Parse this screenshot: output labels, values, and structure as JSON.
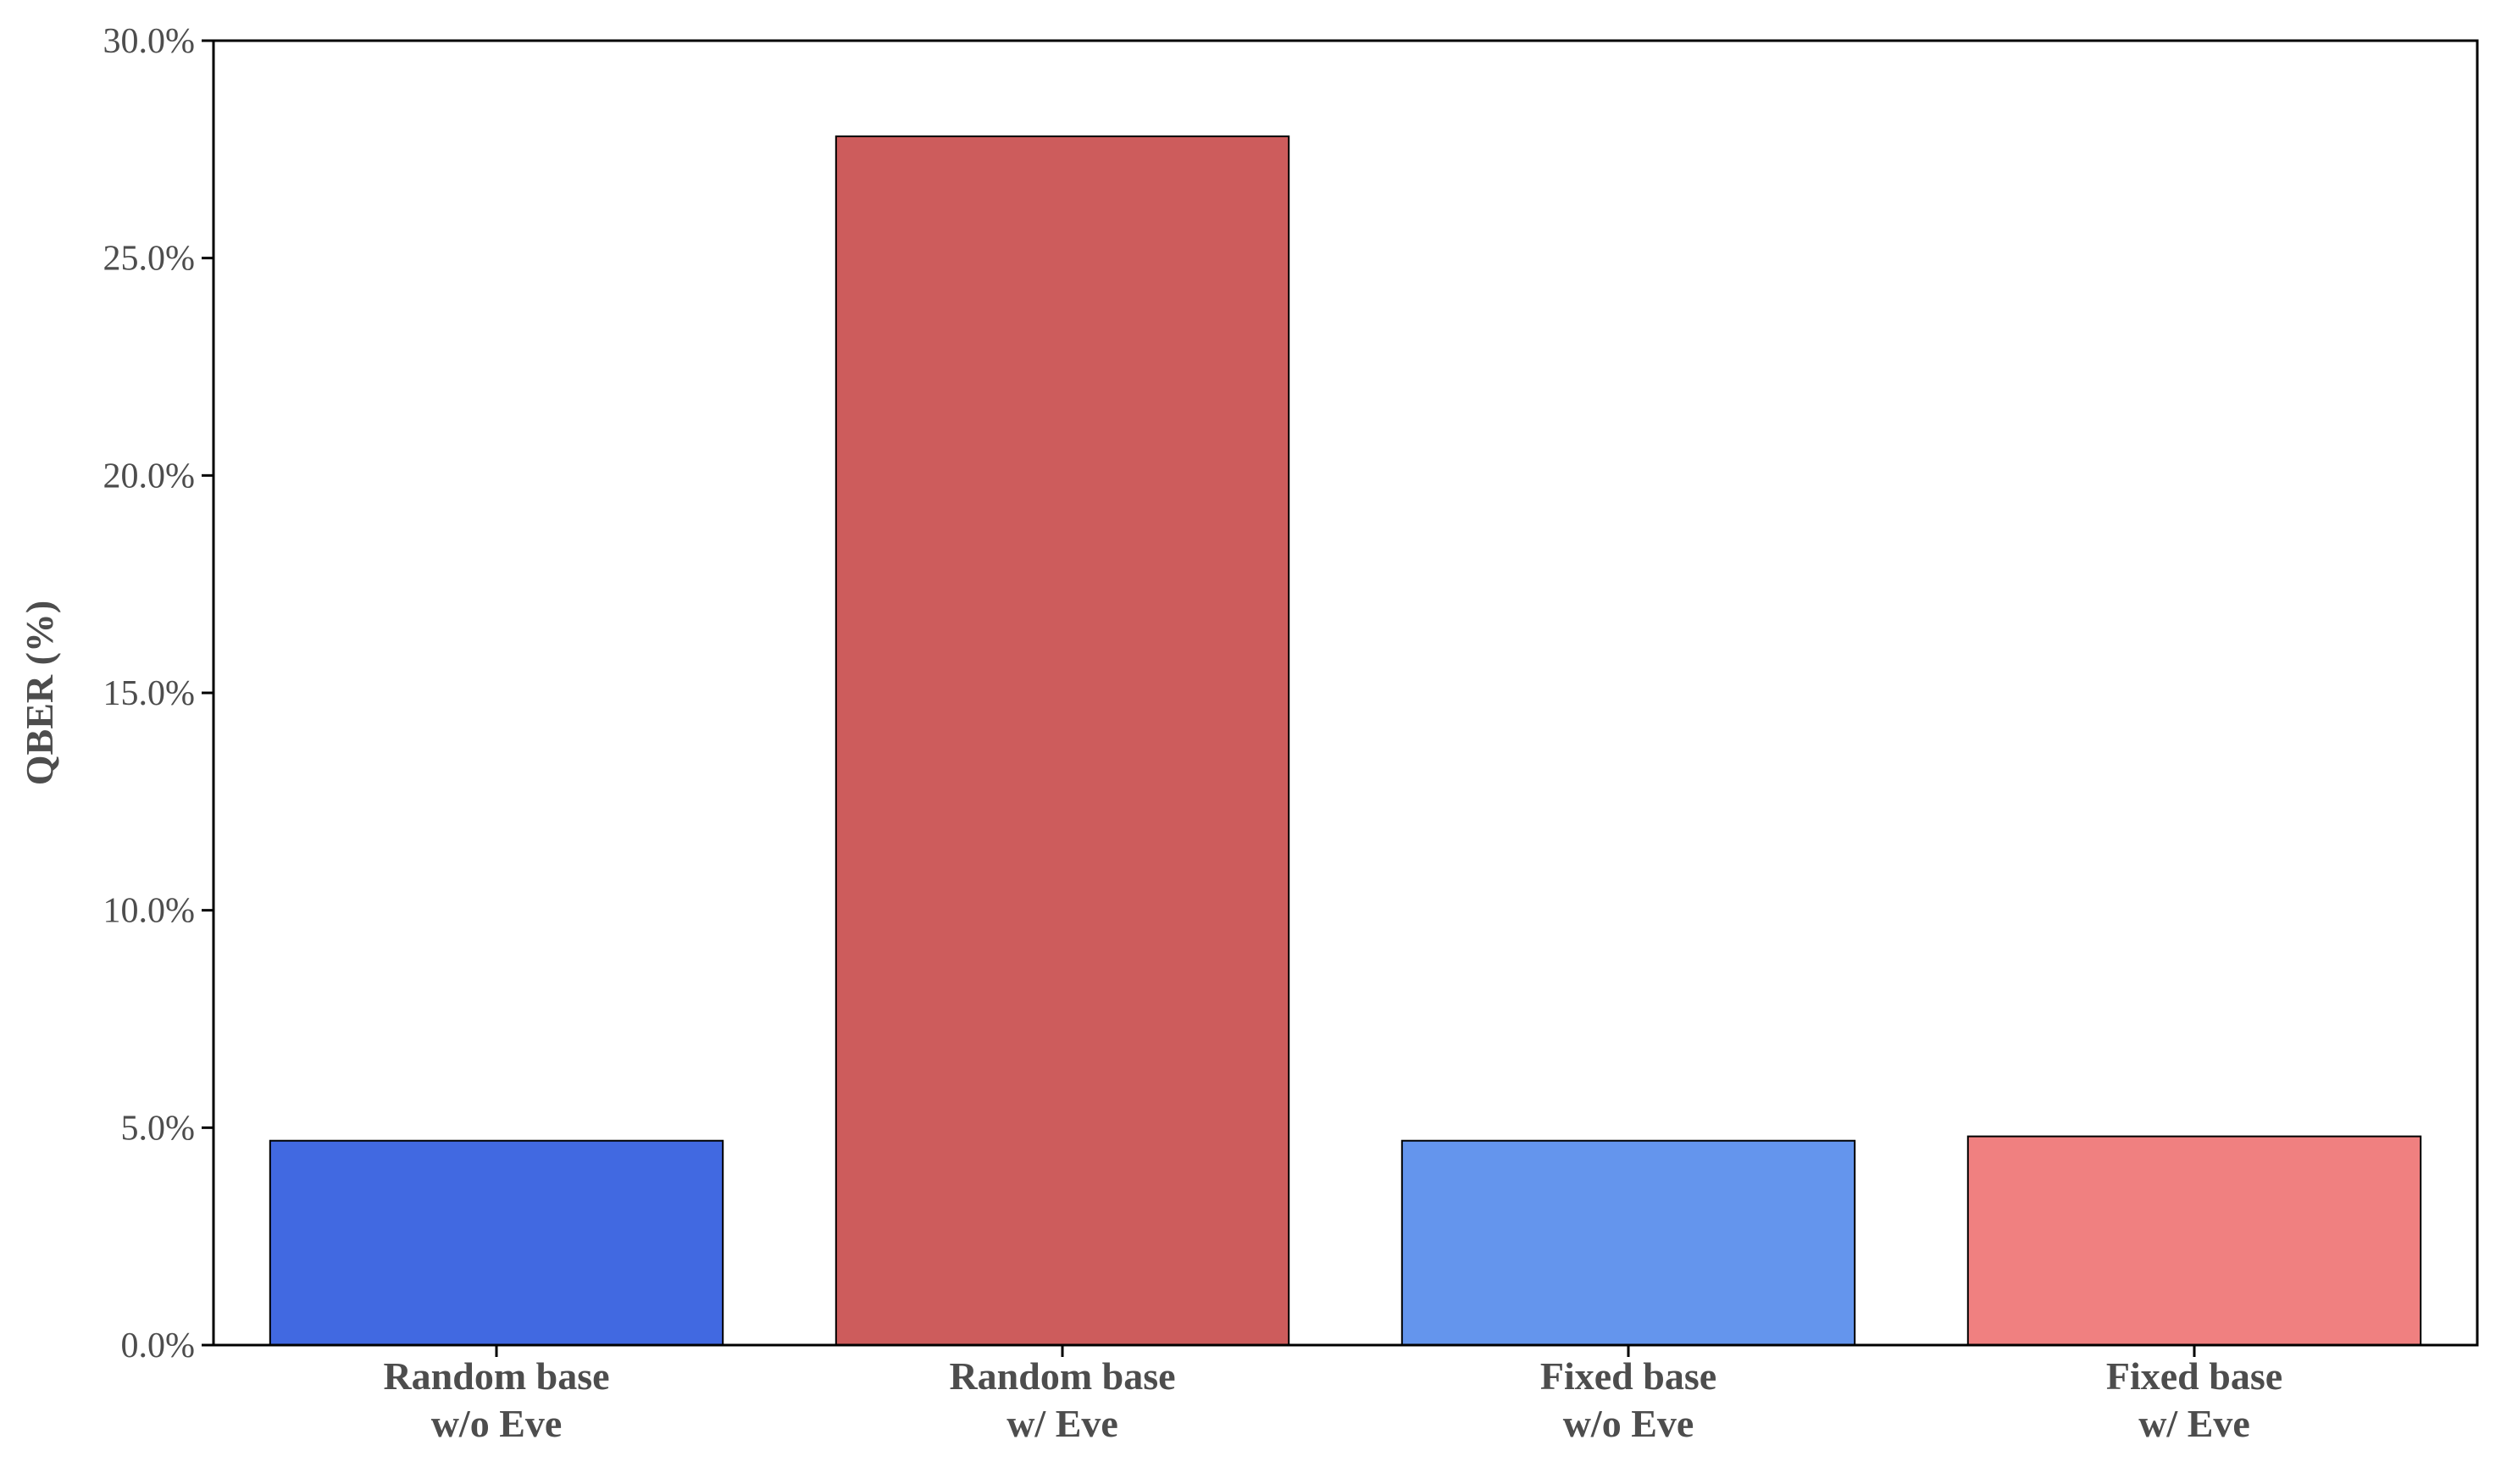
{
  "chart_data": {
    "type": "bar",
    "categories": [
      [
        "Random base",
        "w/o Eve"
      ],
      [
        "Random base",
        "w/ Eve"
      ],
      [
        "Fixed base",
        "w/o Eve"
      ],
      [
        "Fixed base",
        "w/ Eve"
      ]
    ],
    "values": [
      4.7,
      27.8,
      4.7,
      4.8
    ],
    "colors": [
      "#4169e1",
      "#cd5c5c",
      "#6495ed",
      "#f08080"
    ],
    "xlabel": "",
    "ylabel": "QBER (%)",
    "ylim": [
      0,
      30
    ],
    "yticks": [
      0,
      5,
      10,
      15,
      20,
      25,
      30
    ],
    "ytick_labels": [
      "0.0%",
      "5.0%",
      "10.0%",
      "15.0%",
      "20.0%",
      "25.0%",
      "30.0%"
    ],
    "grid": false
  }
}
